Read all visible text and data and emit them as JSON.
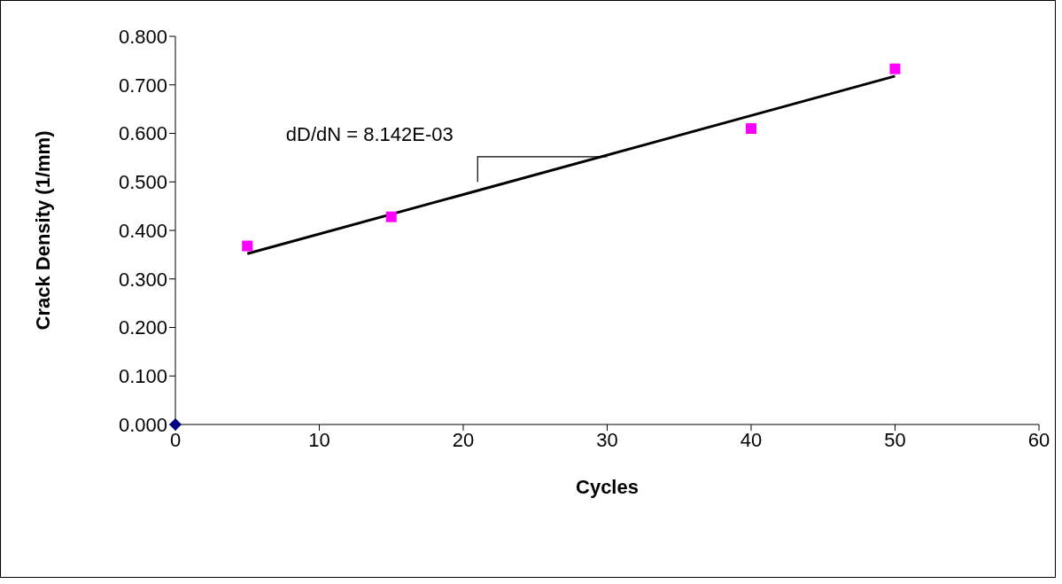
{
  "chart_data": {
    "type": "scatter",
    "xlabel": "Cycles",
    "ylabel": "Crack Density (1/mm)",
    "series": [
      {
        "color": "#000080",
        "marker": "diamond",
        "x": [
          0
        ],
        "values": [
          0
        ]
      },
      {
        "color": "#ff00ff",
        "marker": "square",
        "x": [
          5,
          15,
          40,
          50
        ],
        "values": [
          0.368,
          0.428,
          0.61,
          0.733
        ]
      },
      {
        "type": "line",
        "color": "#000000",
        "marker": "none",
        "x": [
          5,
          50
        ],
        "values": [
          0.352,
          0.718
        ]
      }
    ],
    "annotations": [
      "dD/dN = 8.142E-03"
    ],
    "xlim": [
      0,
      60
    ],
    "xticks": [
      0,
      10,
      20,
      30,
      40,
      50,
      60
    ],
    "ylim": [
      0,
      0.8
    ],
    "yticks": [
      {
        "value": 0,
        "label": "0.000"
      },
      {
        "value": 0.1,
        "label": "0.100"
      },
      {
        "value": 0.2,
        "label": "0.200"
      },
      {
        "value": 0.3,
        "label": "0.300"
      },
      {
        "value": 0.4,
        "label": "0.400"
      },
      {
        "value": 0.5,
        "label": "0.500"
      },
      {
        "value": 0.6,
        "label": "0.600"
      },
      {
        "value": 0.7,
        "label": "0.700"
      },
      {
        "value": 0.8,
        "label": "0.800"
      }
    ]
  }
}
